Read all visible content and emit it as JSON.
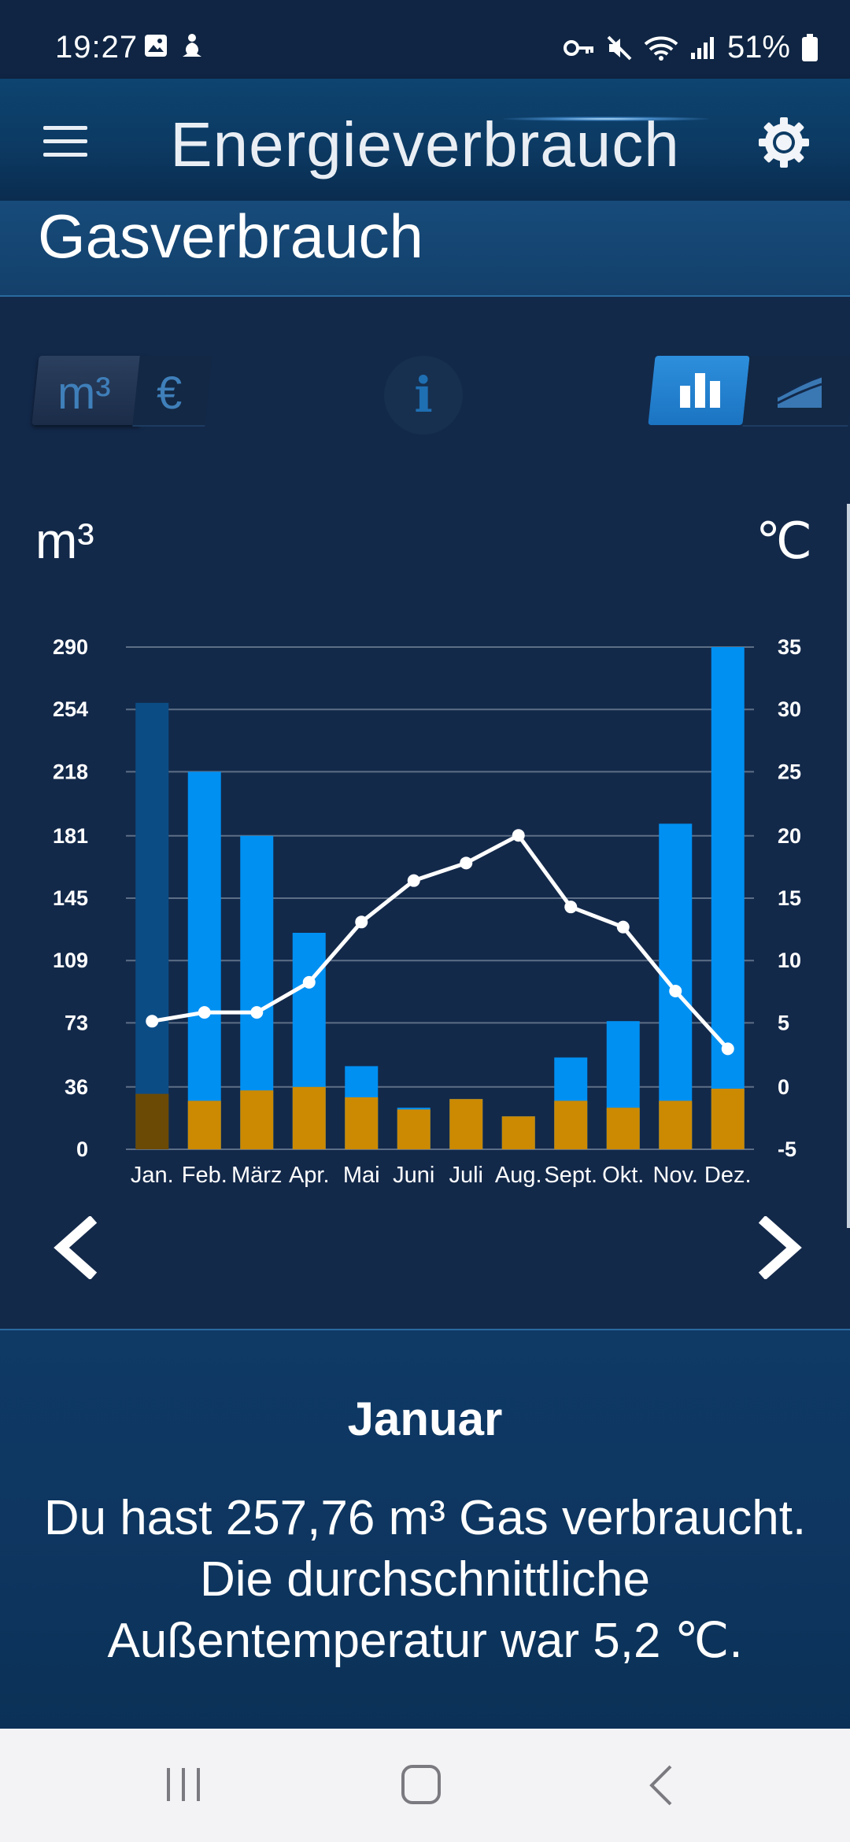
{
  "status_bar": {
    "time": "19:27",
    "battery": "51%",
    "icons_left": [
      "gallery-icon",
      "yoga-icon"
    ],
    "icons_right": [
      "key-icon",
      "mute-icon",
      "wifi-icon",
      "signal-icon",
      "battery-icon"
    ]
  },
  "app_bar": {
    "title": "Energieverbrauch"
  },
  "section": {
    "title": "Gasverbrauch"
  },
  "unit_toggle": {
    "options": [
      "m³",
      "€"
    ],
    "selected": "m³"
  },
  "view_toggle": {
    "selected": "bar"
  },
  "chart_data": {
    "type": "bar",
    "left_axis_unit": "m³",
    "right_axis_unit": "℃",
    "categories": [
      "Jan.",
      "Feb.",
      "März",
      "Apr.",
      "Mai",
      "Juni",
      "Juli",
      "Aug.",
      "Sept.",
      "Okt.",
      "Nov.",
      "Dez."
    ],
    "y_ticks": [
      0,
      36,
      73,
      109,
      145,
      181,
      218,
      254,
      290
    ],
    "y2_ticks": [
      -5,
      0,
      5,
      10,
      15,
      20,
      25,
      30,
      35
    ],
    "ylim": [
      0,
      290
    ],
    "y2lim": [
      -5,
      35
    ],
    "series": [
      {
        "values": [
          257.76,
          218,
          181,
          125,
          48,
          24,
          29,
          19,
          53,
          74,
          188,
          290
        ],
        "color": "#0090f2"
      },
      {
        "values": [
          32,
          28,
          34,
          36,
          30,
          23,
          29,
          19,
          28,
          24,
          28,
          35
        ],
        "color": "#cc8a02"
      },
      {
        "type": "line",
        "axis": "right",
        "values": [
          5.2,
          5.9,
          5.9,
          8.3,
          13.1,
          16.4,
          17.8,
          20.0,
          14.3,
          12.7,
          7.6,
          3.0
        ],
        "color": "#ffffff"
      }
    ],
    "selected_index": 0,
    "selected_colors": {
      "bar": "#0b4c85",
      "base": "#6b4a05"
    },
    "grid": true
  },
  "nav": {
    "prev_icon": "chevron-left-icon",
    "next_icon": "chevron-right-icon"
  },
  "info_panel": {
    "month": "Januar",
    "line1": "Du hast 257,76 m³ Gas verbraucht.",
    "line2": "Die durchschnittliche",
    "line3": "Außentemperatur war 5,2 ℃."
  },
  "system_nav": {
    "recent_icon": "recent-apps-icon",
    "home_icon": "home-icon",
    "back_icon": "back-icon"
  }
}
